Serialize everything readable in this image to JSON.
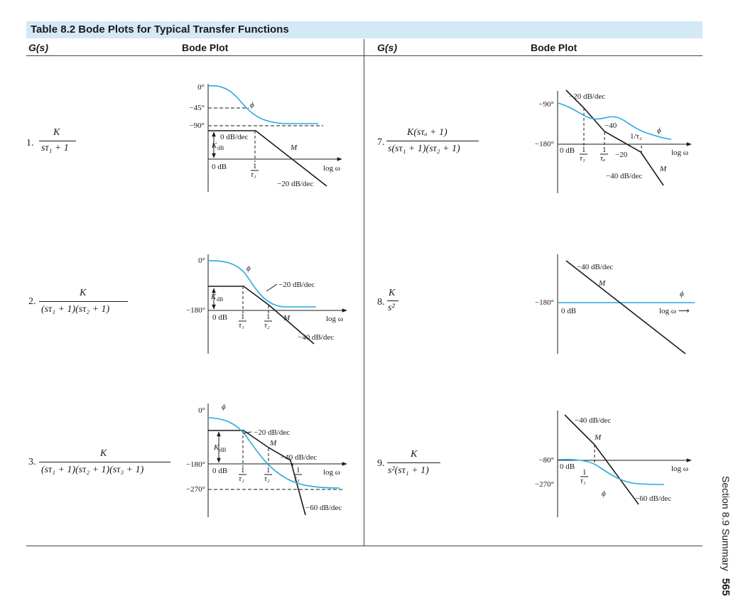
{
  "table": {
    "title": "Table 8.2   Bode Plots for Typical Transfer Functions",
    "col_gs": "G(s)",
    "col_bode": "Bode Plot"
  },
  "colors": {
    "phase": "#29a9e0",
    "magnitude": "#1a1a1a",
    "title_bar": "#d4e9f6"
  },
  "rows": [
    {
      "number": "1.",
      "numerator": "K",
      "denominator": "sτ₁ + 1",
      "labels": {
        "deg0": "0°",
        "deg45": "−45°",
        "deg90": "−90°",
        "phi": "ϕ",
        "slope0": "0 dB/dec",
        "kdb": "K",
        "kdb_sub": "dB",
        "odb": "0 dB",
        "tau": "1",
        "tau_den": "τ₁",
        "m": "M",
        "logw": "log ω",
        "slope1": "−20 dB/dec"
      }
    },
    {
      "number": "2.",
      "numerator": "K",
      "denominator": "(sτ₁ + 1)(sτ₂ + 1)",
      "labels": {
        "deg0": "0°",
        "deg180": "−180°",
        "phi": "ϕ",
        "slope1": "−20 dB/dec",
        "kdb": "K",
        "kdb_sub": "dB",
        "odb": "0 dB",
        "tau1": "1",
        "tau1_den": "τ₁",
        "tau2": "1",
        "tau2_den": "τ₂",
        "m": "M",
        "logw": "log ω",
        "slope2": "−40 dB/dec"
      }
    },
    {
      "number": "3.",
      "numerator": "K",
      "denominator": "(sτ₁ + 1)(sτ₂ + 1)(sτ₃ + 1)",
      "labels": {
        "deg0": "0°",
        "deg180": "−180°",
        "deg270": "−270°",
        "phi": "ϕ",
        "slope1": "−20 dB/dec",
        "m": "M",
        "kdb": "K",
        "kdb_sub": "dB",
        "slope2": "−40 dB/dec",
        "odb": "0 dB",
        "tau1": "1",
        "tau1_den": "τ₁",
        "tau2": "1",
        "tau2_den": "τ₂",
        "tau3": "1",
        "tau3_den": "τ₃",
        "logw": "log ω",
        "slope3": "−60 dB/dec"
      }
    },
    {
      "number": "7.",
      "numerator": "K(sτₐ + 1)",
      "denominator": "s(sτ₁ + 1)(sτ₂ + 1)",
      "labels": {
        "deg90": "−90°",
        "deg180": "−180°",
        "slope20": "−20 dB/dec",
        "s40": "−40",
        "inv_tau2": "1/τ₂",
        "phi": "ϕ",
        "odb": "0 dB",
        "tau1": "1",
        "tau1_den": "τ₁",
        "taua": "1",
        "taua_den": "τₐ",
        "s20": "−20",
        "logw": "log ω",
        "m": "M",
        "slope40": "−40 dB/dec"
      }
    },
    {
      "number": "8.",
      "numerator": "K",
      "denominator": "s²",
      "labels": {
        "slope": "−40 dB/dec",
        "m": "M",
        "deg180": "−180°",
        "odb": "0 dB",
        "phi": "ϕ",
        "logw": "log ω ⟶"
      }
    },
    {
      "number": "9.",
      "numerator": "K",
      "denominator": "s²(sτ₁ + 1)",
      "labels": {
        "slope40": "−40 dB/dec",
        "m": "M",
        "deg80": "−80°",
        "deg270": "−270°",
        "odb": "0 dB",
        "tau1": "1",
        "tau1_den": "τ₁",
        "phi": "ϕ",
        "logw": "log ω",
        "slope60": "−60 dB/dec"
      }
    }
  ],
  "footer": {
    "section": "Section 8.9   Summary",
    "page": "565"
  }
}
